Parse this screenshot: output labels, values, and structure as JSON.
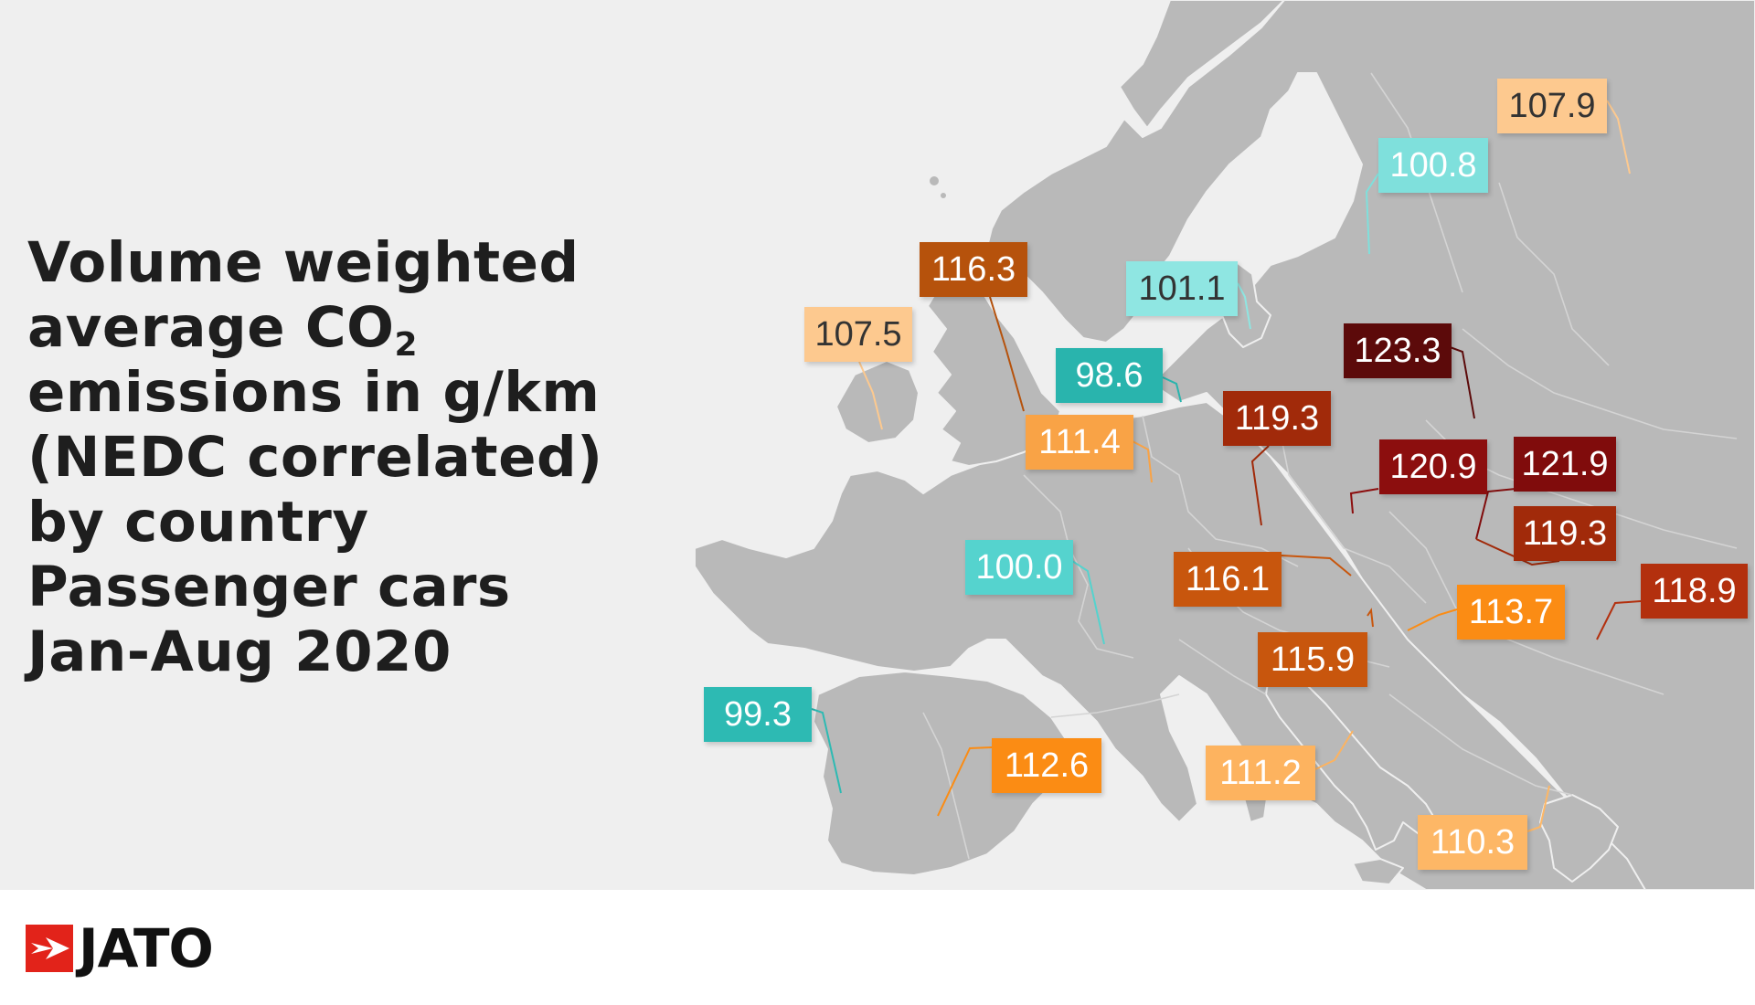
{
  "title": {
    "line1": "Volume weighted",
    "line2_prefix": "average CO",
    "line2_sub": "2",
    "line3": "emissions in g/km",
    "line4": "(NEDC correlated)",
    "line5": "by country",
    "line6": "Passenger cars",
    "line7": "Jan-Aug 2020"
  },
  "brand": {
    "logo_text": "JATO",
    "accent_color": "#e2231a"
  },
  "map": {
    "ocean_color": "#efefef",
    "land_color": "#b9b9b9",
    "labels": [
      {
        "value": "107.9",
        "bg": "#fdc98f",
        "fg": "#333333"
      },
      {
        "value": "100.8",
        "bg": "#7fe0dc",
        "fg": "#ffffff"
      },
      {
        "value": "116.3",
        "bg": "#b6520c",
        "fg": "#ffffff"
      },
      {
        "value": "101.1",
        "bg": "#8fe6e2",
        "fg": "#333333"
      },
      {
        "value": "107.5",
        "bg": "#fdc98f",
        "fg": "#333333"
      },
      {
        "value": "98.6",
        "bg": "#29b4ad",
        "fg": "#ffffff"
      },
      {
        "value": "123.3",
        "bg": "#5c0a0a",
        "fg": "#ffffff"
      },
      {
        "value": "119.3",
        "bg": "#a12a0a",
        "fg": "#ffffff"
      },
      {
        "value": "111.4",
        "bg": "#f9a346",
        "fg": "#ffffff"
      },
      {
        "value": "120.9",
        "bg": "#8c0e0e",
        "fg": "#ffffff"
      },
      {
        "value": "121.9",
        "bg": "#800c0c",
        "fg": "#ffffff"
      },
      {
        "value": "119.3",
        "bg": "#a12a0a",
        "fg": "#ffffff"
      },
      {
        "value": "100.0",
        "bg": "#55d3ce",
        "fg": "#ffffff"
      },
      {
        "value": "116.1",
        "bg": "#c8560d",
        "fg": "#ffffff"
      },
      {
        "value": "113.7",
        "bg": "#fb8c14",
        "fg": "#ffffff"
      },
      {
        "value": "118.9",
        "bg": "#b3300e",
        "fg": "#ffffff"
      },
      {
        "value": "115.9",
        "bg": "#c8560d",
        "fg": "#ffffff"
      },
      {
        "value": "99.3",
        "bg": "#2dbab3",
        "fg": "#ffffff"
      },
      {
        "value": "112.6",
        "bg": "#fb8c14",
        "fg": "#ffffff"
      },
      {
        "value": "111.2",
        "bg": "#fdb35f",
        "fg": "#ffffff"
      },
      {
        "value": "110.3",
        "bg": "#fdb766",
        "fg": "#ffffff"
      }
    ]
  }
}
